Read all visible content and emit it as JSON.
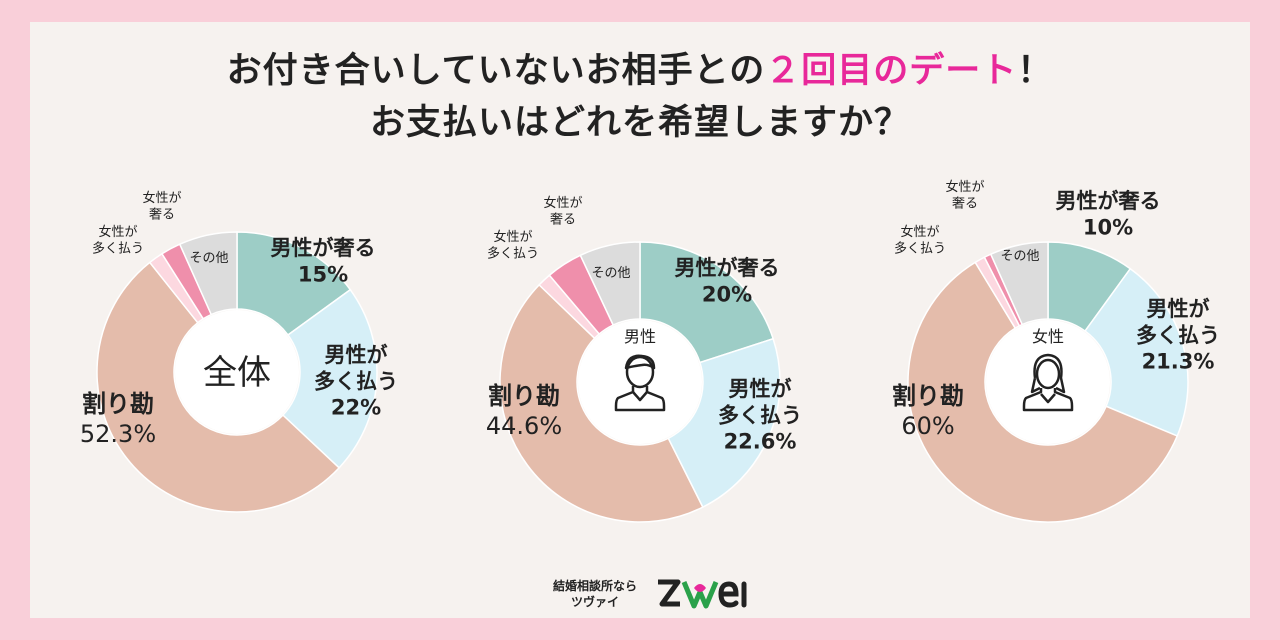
{
  "title": {
    "line1_prefix": "お付き合いしていないお相手との",
    "line1_highlight": "２回目のデート",
    "line1_suffix": "！",
    "line2": "お支払いはどれを希望しますか？"
  },
  "colors": {
    "background": "#f9cfd9",
    "panel": "#f6f2ef",
    "accent": "#e8289a",
    "treat": "#9dcdc6",
    "pay_more": "#d6eff7",
    "split": "#e4bcab",
    "woman_pay_more": "#fcd8e0",
    "woman_treat": "#ef8fab",
    "other": "#dcdcdc"
  },
  "chart_data": [
    {
      "type": "pie",
      "donut": true,
      "center_label": "全体",
      "center_icon": null,
      "slices": [
        {
          "name": "男性が奢る",
          "value": 15,
          "value_label": "15%",
          "color": "#9dcdc6"
        },
        {
          "name": "男性が多く払う",
          "value": 22,
          "value_label": "22%",
          "color": "#d6eff7"
        },
        {
          "name": "割り勘",
          "value": 52.3,
          "value_label": "52.3%",
          "color": "#e4bcab"
        },
        {
          "name": "女性が多く払う",
          "value": 1.7,
          "value_label": "",
          "color": "#fcd8e0"
        },
        {
          "name": "女性が奢る",
          "value": 2.3,
          "value_label": "",
          "color": "#ef8fab"
        },
        {
          "name": "その他",
          "value": 6.7,
          "value_label": "",
          "color": "#dcdcdc"
        }
      ]
    },
    {
      "type": "pie",
      "donut": true,
      "center_label": "男性",
      "center_icon": "man-icon",
      "slices": [
        {
          "name": "男性が奢る",
          "value": 20,
          "value_label": "20%",
          "color": "#9dcdc6"
        },
        {
          "name": "男性が多く払う",
          "value": 22.6,
          "value_label": "22.6%",
          "color": "#d6eff7"
        },
        {
          "name": "割り勘",
          "value": 44.6,
          "value_label": "44.6%",
          "color": "#e4bcab"
        },
        {
          "name": "女性が多く払う",
          "value": 1.6,
          "value_label": "",
          "color": "#fcd8e0"
        },
        {
          "name": "女性が奢る",
          "value": 4.2,
          "value_label": "",
          "color": "#ef8fab"
        },
        {
          "name": "その他",
          "value": 7,
          "value_label": "",
          "color": "#dcdcdc"
        }
      ]
    },
    {
      "type": "pie",
      "donut": true,
      "center_label": "女性",
      "center_icon": "woman-icon",
      "slices": [
        {
          "name": "男性が奢る",
          "value": 10,
          "value_label": "10%",
          "color": "#9dcdc6"
        },
        {
          "name": "男性が多く払う",
          "value": 21.3,
          "value_label": "21.3%",
          "color": "#d6eff7"
        },
        {
          "name": "割り勘",
          "value": 60,
          "value_label": "60%",
          "color": "#e4bcab"
        },
        {
          "name": "女性が多く払う",
          "value": 1.2,
          "value_label": "",
          "color": "#fcd8e0"
        },
        {
          "name": "女性が奢る",
          "value": 0.8,
          "value_label": "",
          "color": "#ef8fab"
        },
        {
          "name": "その他",
          "value": 6.7,
          "value_label": "",
          "color": "#dcdcdc"
        }
      ]
    }
  ],
  "footer": {
    "tagline_line1": "結婚相談所なら",
    "tagline_line2": "ツヴァイ",
    "logo_text": "ZWEI",
    "logo_icon": "heart-logo-icon"
  }
}
